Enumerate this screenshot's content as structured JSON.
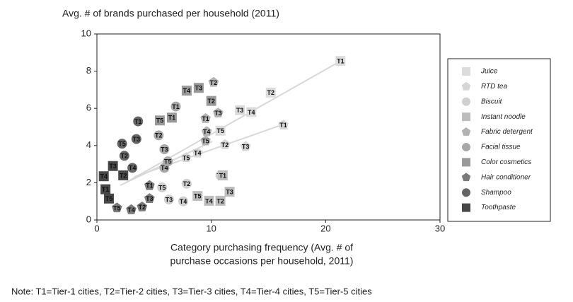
{
  "chart_data": {
    "type": "scatter",
    "title": "Avg. # of brands purchased per household (2011)",
    "xlabel": [
      "Category purchasing frequency (Avg. # of",
      "purchase occasions per household, 2011)"
    ],
    "note": "Note: T1=Tier-1 cities, T2=Tier-2 cities, T3=Tier-3 cities, T4=Tier-4 cities, T5=Tier-5 cities",
    "xlim": [
      0,
      30
    ],
    "xticks": [
      0,
      10,
      20,
      30
    ],
    "ylim": [
      0,
      10
    ],
    "yticks": [
      0,
      2,
      4,
      6,
      8,
      10
    ],
    "legend": "right",
    "series": [
      {
        "name": "Juice",
        "marker": "square",
        "color": "#dcdcdc",
        "labels": [
          "T1",
          "T2",
          "T3",
          "T4",
          "T5"
        ],
        "x": [
          21.3,
          15.2,
          12.5,
          13.5,
          10.8
        ],
        "values": [
          8.55,
          6.85,
          5.9,
          5.8,
          4.8
        ]
      },
      {
        "name": "RTD tea",
        "marker": "pentagon",
        "color": "#d6d6d6",
        "labels": [
          "T1",
          "T2",
          "T3",
          "T4",
          "T5"
        ],
        "x": [
          16.3,
          11.2,
          13.0,
          8.8,
          7.8
        ],
        "values": [
          5.1,
          4.05,
          3.95,
          3.6,
          3.35
        ]
      },
      {
        "name": "Biscuit",
        "marker": "circle",
        "color": "#d0d0d0",
        "labels": [
          "T1",
          "T2",
          "T3",
          "T4",
          "T5"
        ],
        "x": [
          10.8,
          7.85,
          6.3,
          7.55,
          5.7
        ],
        "values": [
          2.4,
          1.95,
          1.1,
          1.0,
          1.75
        ]
      },
      {
        "name": "Instant noodle",
        "marker": "square",
        "color": "#bdbdbd",
        "labels": [
          "T1",
          "T2",
          "T3",
          "T4",
          "T5"
        ],
        "x": [
          11.0,
          10.8,
          11.6,
          9.8,
          8.8
        ],
        "values": [
          2.4,
          1.03,
          1.52,
          1.03,
          1.29
        ]
      },
      {
        "name": "Fabric detergent",
        "marker": "pentagon",
        "color": "#b3b3b3",
        "labels": [
          "T1",
          "T2",
          "T3",
          "T4",
          "T5"
        ],
        "x": [
          9.5,
          10.2,
          10.6,
          9.6,
          9.5
        ],
        "values": [
          5.45,
          7.4,
          5.75,
          4.75,
          4.25
        ]
      },
      {
        "name": "Facial tissue",
        "marker": "circle",
        "color": "#a8a8a8",
        "labels": [
          "T1",
          "T2",
          "T3",
          "T4",
          "T5"
        ],
        "x": [
          6.9,
          5.4,
          5.9,
          5.9,
          6.2
        ],
        "values": [
          6.1,
          4.55,
          3.8,
          2.8,
          3.15
        ]
      },
      {
        "name": "Color cosmetics",
        "marker": "square",
        "color": "#999999",
        "labels": [
          "T1",
          "T2",
          "T3",
          "T4",
          "T5"
        ],
        "x": [
          6.55,
          10.0,
          8.9,
          7.85,
          5.5
        ],
        "values": [
          5.5,
          6.4,
          7.1,
          6.95,
          5.35
        ]
      },
      {
        "name": "Hair conditioner",
        "marker": "pentagon",
        "color": "#7a7a7a",
        "labels": [
          "T1",
          "T2",
          "T3",
          "T4",
          "T5"
        ],
        "x": [
          4.6,
          3.95,
          4.6,
          3.0,
          1.75
        ],
        "values": [
          1.85,
          0.7,
          1.15,
          0.55,
          0.65
        ]
      },
      {
        "name": "Shampoo",
        "marker": "circle",
        "color": "#666666",
        "labels": [
          "T1",
          "T2",
          "T3",
          "T4",
          "T5"
        ],
        "x": [
          3.6,
          2.4,
          3.45,
          3.1,
          2.2
        ],
        "values": [
          5.3,
          3.45,
          4.35,
          2.8,
          4.1
        ]
      },
      {
        "name": "Toothpaste",
        "marker": "square",
        "color": "#484848",
        "labels": [
          "T1",
          "T2",
          "T3",
          "T4",
          "T5"
        ],
        "x": [
          0.75,
          2.3,
          1.4,
          0.6,
          1.05
        ],
        "values": [
          1.65,
          2.4,
          2.9,
          2.35,
          1.15
        ]
      }
    ]
  }
}
